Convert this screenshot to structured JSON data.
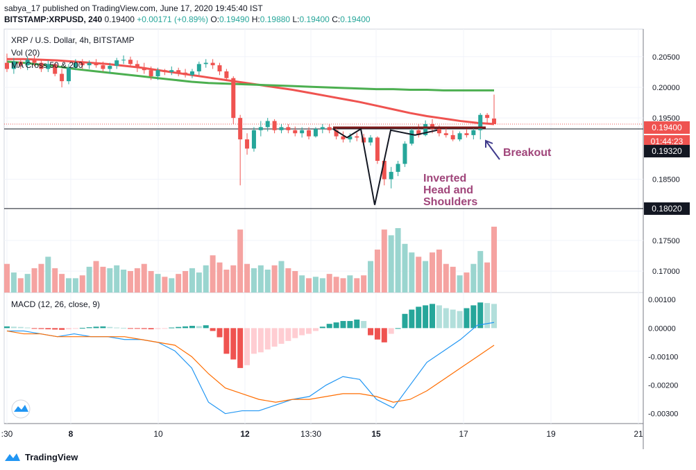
{
  "header": {
    "line1": "sabya_17 published on TradingView.com, June 17, 2020 19:45:40 IST",
    "symbol": "BITSTAMP:XRPUSD, 240",
    "last": "0.19400",
    "change": "+0.00171 (+0.89%)",
    "o_label": "O:",
    "o_val": "0.19490",
    "h_label": "H:",
    "h_val": "0.19880",
    "l_label": "L:",
    "l_val": "0.19400",
    "c_label": "C:",
    "c_val": "0.19400"
  },
  "legend": {
    "title": "XRP / U.S. Dollar, 4h, BITSTAMP",
    "vol": "Vol (20)",
    "ma": "MA Cross 50 & 200",
    "macd": "MACD (12, 26, close, 9)"
  },
  "annotations": {
    "breakout": "Breakout",
    "pattern_line1": "Inverted",
    "pattern_line2": "Head and",
    "pattern_line3": "Shoulders"
  },
  "badges": {
    "price": "0.19400",
    "countdown": "01:44:23",
    "level_upper": "0.19320",
    "level_lower": "0.18020"
  },
  "footer": {
    "brand": "TradingView"
  },
  "colors": {
    "up": "#26a69a",
    "down": "#ef5350",
    "ma50": "#ef5350",
    "ma200": "#4caf50",
    "macd": "#2196f3",
    "signal": "#ff6d00",
    "annotation": "#a0457a",
    "arrow": "#3f3a8c"
  },
  "chart_data": {
    "type": "candlestick",
    "title": "XRP / U.S. Dollar, 4h, BITSTAMP",
    "x_ticks": [
      ":30",
      "8",
      "10",
      "12",
      "13:30",
      "15",
      "17",
      "19",
      "21"
    ],
    "price_ticks": [
      "0.20500",
      "0.20000",
      "0.19500",
      "0.18500",
      "0.17500",
      "0.17000"
    ],
    "price_ylim": [
      0.1665,
      0.2095
    ],
    "horizontal_levels": [
      0.1932,
      0.1802
    ],
    "candles": [
      [
        0.204,
        0.2055,
        0.2025,
        0.203
      ],
      [
        0.203,
        0.2048,
        0.2022,
        0.2042
      ],
      [
        0.2042,
        0.2046,
        0.203,
        0.2036
      ],
      [
        0.2036,
        0.205,
        0.2028,
        0.2045
      ],
      [
        0.2045,
        0.2052,
        0.2035,
        0.204
      ],
      [
        0.204,
        0.2046,
        0.2025,
        0.203
      ],
      [
        0.203,
        0.2044,
        0.2025,
        0.2038
      ],
      [
        0.2038,
        0.204,
        0.2018,
        0.2022
      ],
      [
        0.2022,
        0.203,
        0.2,
        0.201
      ],
      [
        0.201,
        0.2038,
        0.2005,
        0.2032
      ],
      [
        0.2032,
        0.2046,
        0.2028,
        0.204
      ],
      [
        0.204,
        0.2046,
        0.203,
        0.2036
      ],
      [
        0.2036,
        0.2044,
        0.203,
        0.204
      ],
      [
        0.204,
        0.2046,
        0.2032,
        0.2036
      ],
      [
        0.2036,
        0.2042,
        0.2026,
        0.203
      ],
      [
        0.203,
        0.204,
        0.2022,
        0.2035
      ],
      [
        0.2035,
        0.2048,
        0.203,
        0.2044
      ],
      [
        0.2044,
        0.2052,
        0.2038,
        0.2045
      ],
      [
        0.2045,
        0.205,
        0.2034,
        0.2038
      ],
      [
        0.2038,
        0.2044,
        0.2025,
        0.2032
      ],
      [
        0.2032,
        0.204,
        0.2022,
        0.2028
      ],
      [
        0.2028,
        0.2034,
        0.2012,
        0.2018
      ],
      [
        0.2018,
        0.2032,
        0.2012,
        0.2028
      ],
      [
        0.2028,
        0.203,
        0.202,
        0.2025
      ],
      [
        0.2025,
        0.2034,
        0.202,
        0.2028
      ],
      [
        0.2028,
        0.2032,
        0.2018,
        0.2024
      ],
      [
        0.2024,
        0.203,
        0.2016,
        0.202
      ],
      [
        0.202,
        0.203,
        0.2015,
        0.2026
      ],
      [
        0.2026,
        0.2042,
        0.202,
        0.2038
      ],
      [
        0.2038,
        0.2046,
        0.2032,
        0.204
      ],
      [
        0.204,
        0.2046,
        0.203,
        0.2036
      ],
      [
        0.2036,
        0.204,
        0.202,
        0.2026
      ],
      [
        0.2026,
        0.203,
        0.201,
        0.2015
      ],
      [
        0.2015,
        0.2018,
        0.194,
        0.195
      ],
      [
        0.195,
        0.1955,
        0.184,
        0.1915
      ],
      [
        0.1915,
        0.1925,
        0.189,
        0.19
      ],
      [
        0.19,
        0.1935,
        0.1895,
        0.193
      ],
      [
        0.193,
        0.1945,
        0.192,
        0.1935
      ],
      [
        0.1935,
        0.195,
        0.1928,
        0.1945
      ],
      [
        0.1945,
        0.1948,
        0.1925,
        0.193
      ],
      [
        0.193,
        0.194,
        0.1925,
        0.1935
      ],
      [
        0.1935,
        0.194,
        0.1925,
        0.193
      ],
      [
        0.193,
        0.1936,
        0.192,
        0.1925
      ],
      [
        0.1925,
        0.1935,
        0.1918,
        0.193
      ],
      [
        0.193,
        0.1935,
        0.1915,
        0.192
      ],
      [
        0.192,
        0.1935,
        0.1918,
        0.1932
      ],
      [
        0.1932,
        0.194,
        0.1925,
        0.1935
      ],
      [
        0.1935,
        0.194,
        0.1925,
        0.193
      ],
      [
        0.193,
        0.1935,
        0.1915,
        0.192
      ],
      [
        0.192,
        0.1928,
        0.191,
        0.1915
      ],
      [
        0.1915,
        0.1925,
        0.191,
        0.192
      ],
      [
        0.192,
        0.1926,
        0.1912,
        0.1918
      ],
      [
        0.1918,
        0.1924,
        0.1905,
        0.191
      ],
      [
        0.191,
        0.1922,
        0.1905,
        0.1918
      ],
      [
        0.1918,
        0.192,
        0.1875,
        0.188
      ],
      [
        0.188,
        0.1882,
        0.184,
        0.185
      ],
      [
        0.185,
        0.187,
        0.1835,
        0.1862
      ],
      [
        0.1862,
        0.188,
        0.1855,
        0.1875
      ],
      [
        0.1875,
        0.1912,
        0.187,
        0.1908
      ],
      [
        0.1908,
        0.1935,
        0.1905,
        0.193
      ],
      [
        0.193,
        0.194,
        0.1918,
        0.1922
      ],
      [
        0.1922,
        0.1946,
        0.192,
        0.194
      ],
      [
        0.194,
        0.1948,
        0.1925,
        0.1932
      ],
      [
        0.1932,
        0.1938,
        0.192,
        0.1925
      ],
      [
        0.1925,
        0.1935,
        0.1918,
        0.1922
      ],
      [
        0.1922,
        0.193,
        0.1912,
        0.1915
      ],
      [
        0.1915,
        0.1928,
        0.1912,
        0.1925
      ],
      [
        0.1925,
        0.1932,
        0.1918,
        0.1922
      ],
      [
        0.1922,
        0.1934,
        0.1915,
        0.193
      ],
      [
        0.193,
        0.1958,
        0.1915,
        0.1955
      ],
      [
        0.1955,
        0.1958,
        0.194,
        0.195
      ],
      [
        0.1949,
        0.1988,
        0.194,
        0.194
      ]
    ],
    "ma50": [
      0.2046,
      0.2046,
      0.2045,
      0.2044,
      0.2042,
      0.204,
      0.2038,
      0.2035,
      0.2032,
      0.2028,
      0.2024,
      0.202,
      0.2016,
      0.2012,
      0.2008,
      0.2004,
      0.2,
      0.1996,
      0.1991,
      0.1986,
      0.1981,
      0.1976,
      0.197,
      0.1964,
      0.1958,
      0.1953,
      0.1949,
      0.1945,
      0.1942,
      0.194
    ],
    "ma200": [
      0.2042,
      0.204,
      0.2037,
      0.2034,
      0.203,
      0.2027,
      0.2024,
      0.2021,
      0.2018,
      0.2015,
      0.2012,
      0.2009,
      0.2007,
      0.2006,
      0.2005,
      0.2004,
      0.2003,
      0.2002,
      0.2001,
      0.2,
      0.1999,
      0.1998,
      0.1997,
      0.1997,
      0.1996,
      0.1996,
      0.1995,
      0.1995,
      0.1995,
      0.1995
    ],
    "volume": [
      20,
      14,
      10,
      13,
      17,
      20,
      25,
      17,
      13,
      10,
      10,
      12,
      18,
      22,
      18,
      17,
      19,
      16,
      15,
      17,
      20,
      15,
      13,
      11,
      10,
      13,
      15,
      17,
      14,
      19,
      26,
      21,
      16,
      19,
      44,
      20,
      17,
      19,
      16,
      19,
      22,
      17,
      15,
      12,
      10,
      11,
      10,
      13,
      11,
      10,
      12,
      10,
      12,
      22,
      30,
      44,
      40,
      45,
      34,
      28,
      25,
      22,
      28,
      30,
      20,
      18,
      12,
      14,
      20,
      29,
      21,
      46
    ],
    "macd_ticks": [
      "0.00100",
      "0.00000",
      "-0.00100",
      "-0.00200",
      "-0.00300"
    ],
    "macd_ylim": [
      -0.0033,
      0.0012
    ],
    "macd_line": [
      -0.0001,
      -0.0001,
      -0.0002,
      -0.0003,
      -0.0002,
      -0.0003,
      -0.0003,
      -0.0004,
      -0.0004,
      -0.0005,
      -0.0008,
      -0.0014,
      -0.0026,
      -0.003,
      -0.0029,
      -0.0029,
      -0.0027,
      -0.0025,
      -0.0024,
      -0.002,
      -0.0017,
      -0.0018,
      -0.0025,
      -0.0028,
      -0.002,
      -0.0012,
      -0.0008,
      -0.0004,
      0.0001,
      0.0002
    ],
    "signal_line": [
      -0.0001,
      -0.0002,
      -0.0002,
      -0.0003,
      -0.0003,
      -0.0003,
      -0.0003,
      -0.0003,
      -0.0004,
      -0.0005,
      -0.0006,
      -0.001,
      -0.0016,
      -0.0021,
      -0.0023,
      -0.0025,
      -0.0026,
      -0.0025,
      -0.0025,
      -0.0024,
      -0.0023,
      -0.0023,
      -0.0024,
      -0.0026,
      -0.0025,
      -0.0022,
      -0.0018,
      -0.0014,
      -0.001,
      -0.0006
    ],
    "macd_hist": [
      6e-05,
      5e-05,
      4e-05,
      2e-05,
      -1e-05,
      -3e-05,
      -4e-05,
      -5e-05,
      -6e-05,
      -4e-05,
      -2e-05,
      1e-05,
      3e-05,
      5e-05,
      6e-05,
      4e-05,
      2e-05,
      1e-05,
      -1e-05,
      -2e-05,
      -3e-05,
      -4e-05,
      -3e-05,
      -2e-05,
      2e-05,
      4e-05,
      6e-05,
      8e-05,
      7e-05,
      0.0001,
      -0.0001,
      -0.00032,
      -0.0009,
      -0.0011,
      -0.0014,
      -0.0013,
      -0.0009,
      -0.00085,
      -0.00075,
      -0.00065,
      -0.00055,
      -0.00045,
      -0.00035,
      -0.00025,
      -0.0002,
      -0.0001,
      5e-05,
      0.00015,
      0.0002,
      0.00025,
      0.00025,
      0.0003,
      0.00025,
      -0.00025,
      -0.0004,
      -0.0005,
      -0.0002,
      0.0,
      0.0005,
      0.00065,
      0.00075,
      0.0008,
      0.00085,
      0.0008,
      0.0007,
      0.00065,
      0.0006,
      0.0007,
      0.0008,
      0.0009,
      0.00088,
      0.00085
    ],
    "pattern_points": [
      [
        0.1932,
        "left shoulder start"
      ],
      [
        0.1918,
        "left shoulder"
      ],
      [
        0.1932,
        "neck"
      ],
      [
        0.1808,
        "head"
      ],
      [
        0.193,
        "neck"
      ],
      [
        0.1922,
        "right shoulder"
      ],
      [
        0.193,
        "neck"
      ]
    ]
  }
}
